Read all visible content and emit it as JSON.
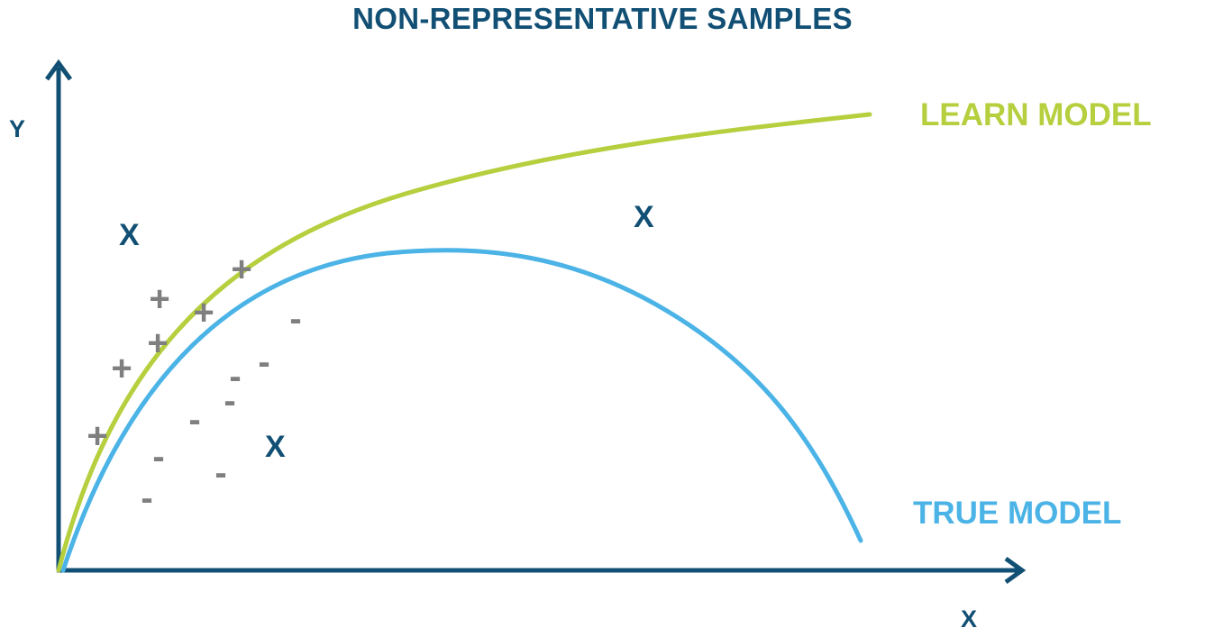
{
  "title": "NON-REPRESENTATIVE SAMPLES",
  "axes": {
    "x_label": "X",
    "y_label": "Y"
  },
  "curves": {
    "learn_model": {
      "label": "LEARN MODEL",
      "color": "#b5cf3e"
    },
    "true_model": {
      "label": "TRUE MODEL",
      "color": "#4bb3e6"
    }
  },
  "markers": {
    "x_symbol": "X",
    "plus_symbol": "+",
    "minus_symbol": "-"
  },
  "colors": {
    "axis": "#114f74",
    "sample": "#7f7f7f"
  }
}
